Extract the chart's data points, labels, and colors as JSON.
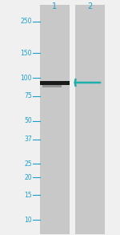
{
  "fig_width": 1.5,
  "fig_height": 2.93,
  "dpi": 100,
  "bg_color": "#f0f0f0",
  "lane_color": "#c8c8c8",
  "mw_labels": [
    "250",
    "150",
    "100",
    "75",
    "50",
    "37",
    "25",
    "20",
    "15",
    "10"
  ],
  "mw_values": [
    250,
    150,
    100,
    75,
    50,
    37,
    25,
    20,
    15,
    10
  ],
  "mw_color": "#1a9fcc",
  "lane_label_color": "#1a9fcc",
  "band_mw": 92,
  "band_color_dark": "#1a1a1a",
  "band_color_light": "#555555",
  "arrow_color": "#1aafaa",
  "lane1_xl": 0.33,
  "lane1_xr": 0.58,
  "lane2_xl": 0.63,
  "lane2_xr": 0.88
}
